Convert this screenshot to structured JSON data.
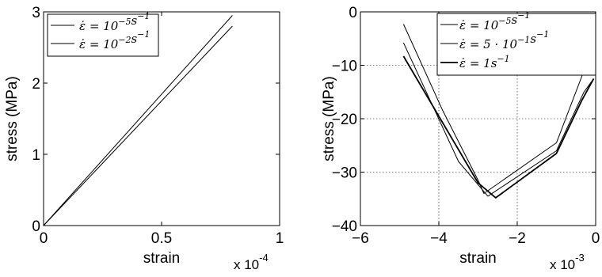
{
  "chart_data": [
    {
      "type": "line",
      "title": "",
      "xlabel": "strain",
      "ylabel": "stress (MPa)",
      "x_scale_text": "x 10",
      "x_scale_exp": "-4",
      "xlim": [
        0,
        1
      ],
      "ylim": [
        0,
        3
      ],
      "xticks": [
        0,
        0.5,
        1
      ],
      "xtick_labels": [
        "0",
        "0.5",
        "1"
      ],
      "yticks": [
        0,
        1,
        2,
        3
      ],
      "ytick_labels": [
        "0",
        "1",
        "2",
        "3"
      ],
      "grid": false,
      "legend_position": "top-left",
      "series": [
        {
          "name": "ε̇ = 10⁻⁵s⁻¹",
          "legend_parts": [
            [
              "ε̇ = 10",
              "n"
            ],
            [
              "−5",
              "sup"
            ],
            [
              "s",
              "n"
            ],
            [
              "−1",
              "sup"
            ]
          ],
          "line_width": 1.0,
          "x": [
            0,
            0.8
          ],
          "y": [
            0,
            2.95
          ]
        },
        {
          "name": "ε̇ = 10⁻²s⁻¹",
          "legend_parts": [
            [
              "ε̇ = 10",
              "n"
            ],
            [
              "−2",
              "sup"
            ],
            [
              "s",
              "n"
            ],
            [
              "−1",
              "sup"
            ]
          ],
          "line_width": 1.0,
          "x": [
            0,
            0.8
          ],
          "y": [
            0,
            2.8
          ]
        }
      ]
    },
    {
      "type": "line",
      "title": "",
      "xlabel": "strain",
      "ylabel": "stress (MPa)",
      "x_scale_text": "x 10",
      "x_scale_exp": "-3",
      "xlim": [
        -6,
        0
      ],
      "ylim": [
        -40,
        0
      ],
      "xticks": [
        -6,
        -4,
        -2,
        0
      ],
      "xtick_labels": [
        "−6",
        "−4",
        "−2",
        "0"
      ],
      "yticks": [
        -40,
        -30,
        -20,
        -10,
        0
      ],
      "ytick_labels": [
        "−40",
        "−30",
        "−20",
        "−10",
        "0"
      ],
      "grid": true,
      "legend_position": "top-right",
      "series": [
        {
          "name": "ε̇ = 10⁻⁵s⁻¹",
          "legend_parts": [
            [
              "ε̇ = 10",
              "n"
            ],
            [
              "−5",
              "sup"
            ],
            [
              "s",
              "n"
            ],
            [
              "−1",
              "sup"
            ]
          ],
          "line_width": 1.0,
          "x": [
            -4.9,
            -3.9,
            -3.0,
            -2.85,
            -1.0,
            -0.35,
            -0.15,
            0.0
          ],
          "y": [
            -2.3,
            -18.5,
            -31.5,
            -34.0,
            -24.5,
            -12.0,
            -5.0,
            0.0
          ]
        },
        {
          "name": "ε̇ = 5 · 10⁻¹s⁻¹",
          "legend_parts": [
            [
              "ε̇ = 5 · 10",
              "n"
            ],
            [
              "−1",
              "sup"
            ],
            [
              "s",
              "n"
            ],
            [
              "−1",
              "sup"
            ]
          ],
          "line_width": 1.0,
          "x": [
            -4.9,
            -3.5,
            -2.75,
            -1.0,
            -0.3,
            -0.05
          ],
          "y": [
            -5.8,
            -28.0,
            -34.5,
            -26.0,
            -15.0,
            -12.5
          ]
        },
        {
          "name": "ε̇ = 1s⁻¹",
          "legend_parts": [
            [
              "ε̇ = 1s",
              "n"
            ],
            [
              "−1",
              "sup"
            ]
          ],
          "line_width": 1.8,
          "x": [
            -4.9,
            -3.0,
            -2.55,
            -1.0,
            -0.35,
            -0.05
          ],
          "y": [
            -8.3,
            -32.0,
            -34.8,
            -26.5,
            -16.5,
            -12.5
          ]
        }
      ]
    }
  ]
}
